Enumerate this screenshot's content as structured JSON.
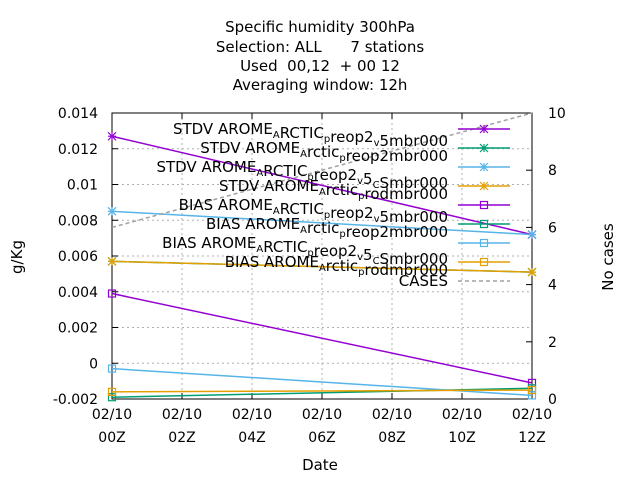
{
  "chart_data": {
    "type": "line",
    "title_lines": [
      "Specific humidity 300hPa",
      "Selection: ALL      7 stations",
      "Used  00,12  + 00 12",
      "Averaging window: 12h"
    ],
    "xlabel": "Date",
    "ylabel": "g/Kg",
    "y2label": "No cases",
    "x_ticks": [
      {
        "x": 0,
        "line1": "02/10",
        "line2": "00Z"
      },
      {
        "x": 2,
        "line1": "02/10",
        "line2": "02Z"
      },
      {
        "x": 4,
        "line1": "02/10",
        "line2": "04Z"
      },
      {
        "x": 6,
        "line1": "02/10",
        "line2": "06Z"
      },
      {
        "x": 8,
        "line1": "02/10",
        "line2": "08Z"
      },
      {
        "x": 10,
        "line1": "02/10",
        "line2": "10Z"
      },
      {
        "x": 12,
        "line1": "02/10",
        "line2": "12Z"
      }
    ],
    "xlim": [
      0,
      12
    ],
    "ylim": [
      -0.002,
      0.014
    ],
    "y_ticks": [
      "-0.002",
      "0",
      "0.002",
      "0.004",
      "0.006",
      "0.008",
      "0.01",
      "0.012",
      "0.014"
    ],
    "y2lim": [
      0,
      10
    ],
    "y2_ticks": [
      "0",
      "2",
      "4",
      "6",
      "8",
      "10"
    ],
    "grid": true,
    "legend_position": "top-right",
    "series": [
      {
        "name": [
          "STDV AROME",
          {
            "sub": "A"
          },
          "RCTIC",
          {
            "sub": "p"
          },
          "reop2",
          {
            "sub": "v"
          },
          "5mbr000"
        ],
        "color": "#9400d3",
        "marker": "star",
        "axis": "y",
        "x": [
          0,
          12
        ],
        "values": [
          0.0127,
          0.0072
        ]
      },
      {
        "name": [
          "STDV AROME",
          {
            "sub": "A"
          },
          "rctic",
          {
            "sub": "p"
          },
          "reop2mbr000"
        ],
        "color": "#009e73",
        "marker": "star",
        "axis": "y",
        "x": [
          0,
          12
        ],
        "values": [
          0.0057,
          0.0051
        ]
      },
      {
        "name": [
          "STDV AROME",
          {
            "sub": "A"
          },
          "RCTIC",
          {
            "sub": "p"
          },
          "reop2",
          {
            "sub": "v"
          },
          "5",
          {
            "sub": "C"
          },
          "Smbr000"
        ],
        "color": "#56b4e9",
        "marker": "star",
        "axis": "y",
        "x": [
          0,
          12
        ],
        "values": [
          0.0085,
          0.0072
        ]
      },
      {
        "name": [
          "STDV AROME",
          {
            "sub": "A"
          },
          "rctic",
          {
            "sub": "p"
          },
          "rodmbr000"
        ],
        "color": "#e69f00",
        "marker": "star",
        "axis": "y",
        "x": [
          0,
          12
        ],
        "values": [
          0.0057,
          0.0051
        ]
      },
      {
        "name": [
          "BIAS AROME",
          {
            "sub": "A"
          },
          "RCTIC",
          {
            "sub": "p"
          },
          "reop2",
          {
            "sub": "v"
          },
          "5mbr000"
        ],
        "color": "#9400d3",
        "marker": "square",
        "axis": "y",
        "x": [
          0,
          12
        ],
        "values": [
          0.0039,
          -0.0011
        ]
      },
      {
        "name": [
          "BIAS AROME",
          {
            "sub": "A"
          },
          "rctic",
          {
            "sub": "p"
          },
          "reop2mbr000"
        ],
        "color": "#009e73",
        "marker": "square",
        "axis": "y",
        "x": [
          0,
          12
        ],
        "values": [
          -0.0019,
          -0.0014
        ]
      },
      {
        "name": [
          "BIAS AROME",
          {
            "sub": "A"
          },
          "RCTIC",
          {
            "sub": "p"
          },
          "reop2",
          {
            "sub": "v"
          },
          "5",
          {
            "sub": "C"
          },
          "Smbr000"
        ],
        "color": "#56b4e9",
        "marker": "square",
        "axis": "y",
        "x": [
          0,
          12
        ],
        "values": [
          -0.0003,
          -0.0018
        ]
      },
      {
        "name": [
          "BIAS AROME",
          {
            "sub": "A"
          },
          "rctic",
          {
            "sub": "p"
          },
          "rodmbr000"
        ],
        "color": "#e69f00",
        "marker": "square",
        "axis": "y",
        "x": [
          0,
          12
        ],
        "values": [
          -0.0016,
          -0.0015
        ]
      },
      {
        "name": [
          "CASES"
        ],
        "color": "#a0a0a0",
        "marker": "none",
        "dashed": true,
        "axis": "y2",
        "x": [
          0,
          12
        ],
        "values": [
          6.0,
          10.0
        ]
      }
    ]
  }
}
